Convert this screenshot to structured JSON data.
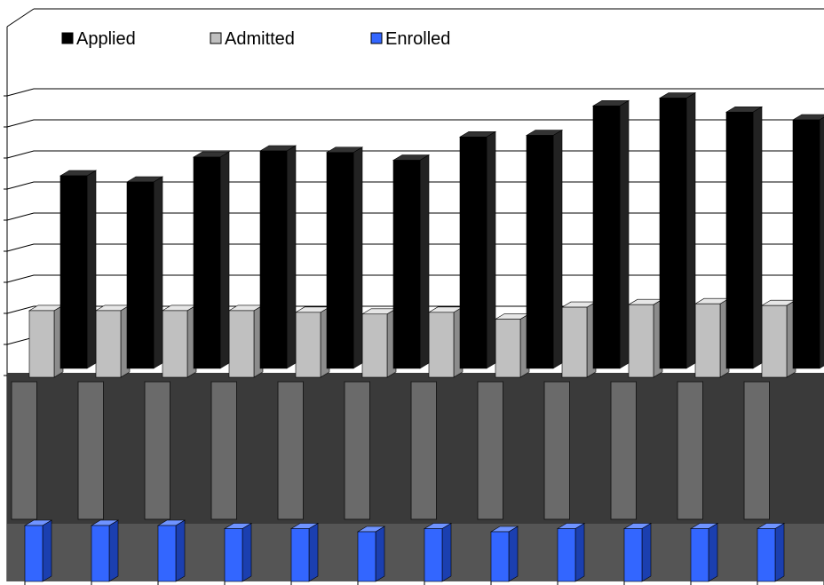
{
  "chart_data": {
    "type": "bar",
    "title": "",
    "xlabel": "",
    "ylabel": "",
    "legend_position": "top-left",
    "grid": true,
    "categories": [
      "",
      "",
      "",
      "",
      "",
      "",
      "",
      "",
      "",
      "",
      "",
      ""
    ],
    "series": [
      {
        "name": "Applied",
        "color": "#000000",
        "values": [
          6.2,
          6.0,
          6.8,
          7.0,
          6.95,
          6.7,
          7.45,
          7.5,
          8.45,
          8.7,
          8.25,
          8.0
        ]
      },
      {
        "name": "Admitted",
        "color": "#c0c0c0",
        "values": [
          3.9,
          3.9,
          3.9,
          3.9,
          3.8,
          3.7,
          3.8,
          3.4,
          4.1,
          4.25,
          4.3,
          4.2
        ]
      },
      {
        "name": "Enrolled",
        "color": "#3366ff",
        "values": [
          0.9,
          0.9,
          0.9,
          0.85,
          0.85,
          0.8,
          0.85,
          0.8,
          0.85,
          0.85,
          0.85,
          0.85
        ]
      }
    ],
    "ylim": [
      0,
      9
    ]
  }
}
